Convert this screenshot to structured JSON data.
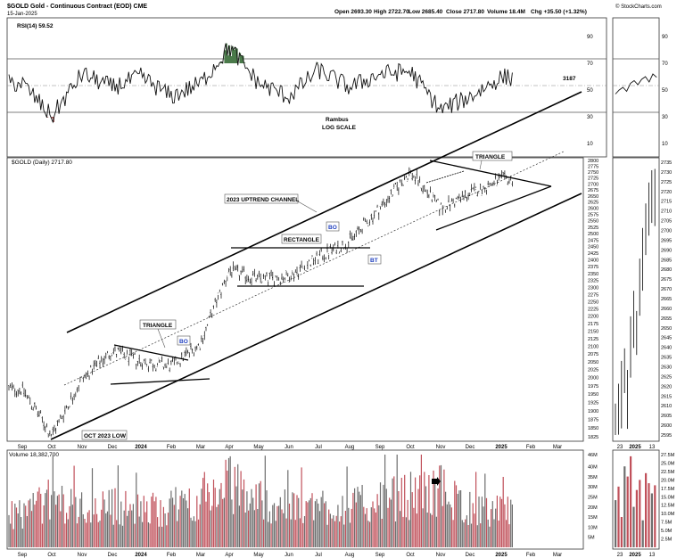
{
  "header": {
    "symbol_title": "$GOLD Gold - Continuous Contract (EOD) CME",
    "date": "15-Jan-2025",
    "open": "Open 2693.30",
    "high": "High 2722.70",
    "low": "Low 2685.40",
    "close": "Close 2717.80",
    "volume": "Volume 18.4M",
    "chg": "Chg +35.50 (+1.32%)",
    "credit": "© StockCharts.com"
  },
  "rsi_panel": {
    "label": "RSI(14) 59.52",
    "value_tag": "3187",
    "annotation_1": "Rambus",
    "annotation_2": "LOG SCALE",
    "ticks": [
      "90",
      "70",
      "50",
      "30",
      "10"
    ]
  },
  "price_panel": {
    "label": "$GOLD (Daily) 2717.80",
    "ticks": [
      "2800",
      "2775",
      "2750",
      "2725",
      "2700",
      "2675",
      "2650",
      "2625",
      "2600",
      "2575",
      "2550",
      "2525",
      "2500",
      "2475",
      "2450",
      "2425",
      "2400",
      "2375",
      "2350",
      "2325",
      "2300",
      "2275",
      "2250",
      "2225",
      "2200",
      "2175",
      "2150",
      "2125",
      "2100",
      "2075",
      "2050",
      "2025",
      "2000",
      "1975",
      "1950",
      "1925",
      "1900",
      "1875",
      "1850",
      "1825"
    ],
    "zoom_ticks": [
      "2735",
      "2730",
      "2725",
      "2720",
      "2715",
      "2710",
      "2705",
      "2700",
      "2695",
      "2690",
      "2685",
      "2680",
      "2675",
      "2670",
      "2665",
      "2660",
      "2655",
      "2650",
      "2645",
      "2640",
      "2635",
      "2630",
      "2625",
      "2620",
      "2615",
      "2610",
      "2605",
      "2600",
      "2595"
    ],
    "annotations": {
      "channel": "2023 UPTREND CHANNEL",
      "rectangle": "RECTANGLE",
      "triangle_left": "TRIANGLE",
      "triangle_right": "TRIANGLE",
      "low": "OCT 2023 LOW",
      "bo1": "BO",
      "bo2": "BO",
      "bt": "BT"
    }
  },
  "volume_panel": {
    "label": "Volume 18,382,700",
    "ticks": [
      "46M",
      "40M",
      "35M",
      "30M",
      "25M",
      "20M",
      "15M",
      "10M",
      "5M"
    ],
    "zoom_ticks": [
      "27.5M",
      "25.0M",
      "22.5M",
      "20.0M",
      "17.5M",
      "15.0M",
      "12.5M",
      "10.0M",
      "7.5M",
      "5.0M",
      "2.5M"
    ]
  },
  "x_axis": {
    "main_labels": [
      "Sep",
      "Oct",
      "Nov",
      "Dec",
      "2024",
      "Feb",
      "Mar",
      "Apr",
      "May",
      "Jun",
      "Jul",
      "Aug",
      "Sep",
      "Oct",
      "Nov",
      "Dec",
      "2025",
      "Feb",
      "Mar"
    ],
    "zoom_labels": [
      "23",
      "2025",
      "13"
    ]
  },
  "colors": {
    "up": "#000000",
    "vol_down": "#c0505a",
    "vol_up": "#6e6e6e",
    "rsi_fill": "#4a7a4a",
    "rsi_low_fill": "#a05858",
    "bo_text": "#1f3fbf"
  },
  "chart_data": [
    {
      "type": "line",
      "title": "RSI(14) 59.52",
      "ylim": [
        0,
        100
      ],
      "reference_lines": [
        70,
        50,
        30
      ],
      "x": [
        "Sep",
        "Oct",
        "Nov",
        "Dec",
        "2024",
        "Feb",
        "Mar",
        "Apr",
        "May",
        "Jun",
        "Jul",
        "Aug",
        "Sep",
        "Oct",
        "Nov",
        "Dec",
        "2025"
      ],
      "values": [
        55,
        30,
        62,
        52,
        60,
        45,
        55,
        82,
        55,
        45,
        65,
        52,
        62,
        64,
        35,
        45,
        59.52
      ]
    },
    {
      "type": "line",
      "title": "$GOLD (Daily) 2717.80",
      "ylabel": "",
      "ylim": [
        1825,
        2800
      ],
      "x": [
        "Sep",
        "Oct",
        "Nov",
        "Dec",
        "2024",
        "Feb",
        "Mar",
        "Apr",
        "May",
        "Jun",
        "Jul",
        "Aug",
        "Sep",
        "Oct",
        "Nov",
        "Dec",
        "2025"
      ],
      "values": [
        1965,
        1828,
        1995,
        2085,
        2050,
        2035,
        2110,
        2360,
        2330,
        2340,
        2410,
        2470,
        2600,
        2750,
        2600,
        2660,
        2717.8
      ]
    },
    {
      "type": "bar",
      "title": "Volume 18,382,700",
      "ylim": [
        0,
        46000000
      ],
      "x": [
        "Sep",
        "Oct",
        "Nov",
        "Dec",
        "2024",
        "Feb",
        "Mar",
        "Apr",
        "May",
        "Jun",
        "Jul",
        "Aug",
        "Sep",
        "Oct",
        "Nov",
        "Dec",
        "2025"
      ],
      "values": [
        18000000,
        25000000,
        20000000,
        22000000,
        19000000,
        21000000,
        26000000,
        33000000,
        25000000,
        20000000,
        22000000,
        21000000,
        24000000,
        27000000,
        30000000,
        20000000,
        18382700
      ]
    }
  ]
}
